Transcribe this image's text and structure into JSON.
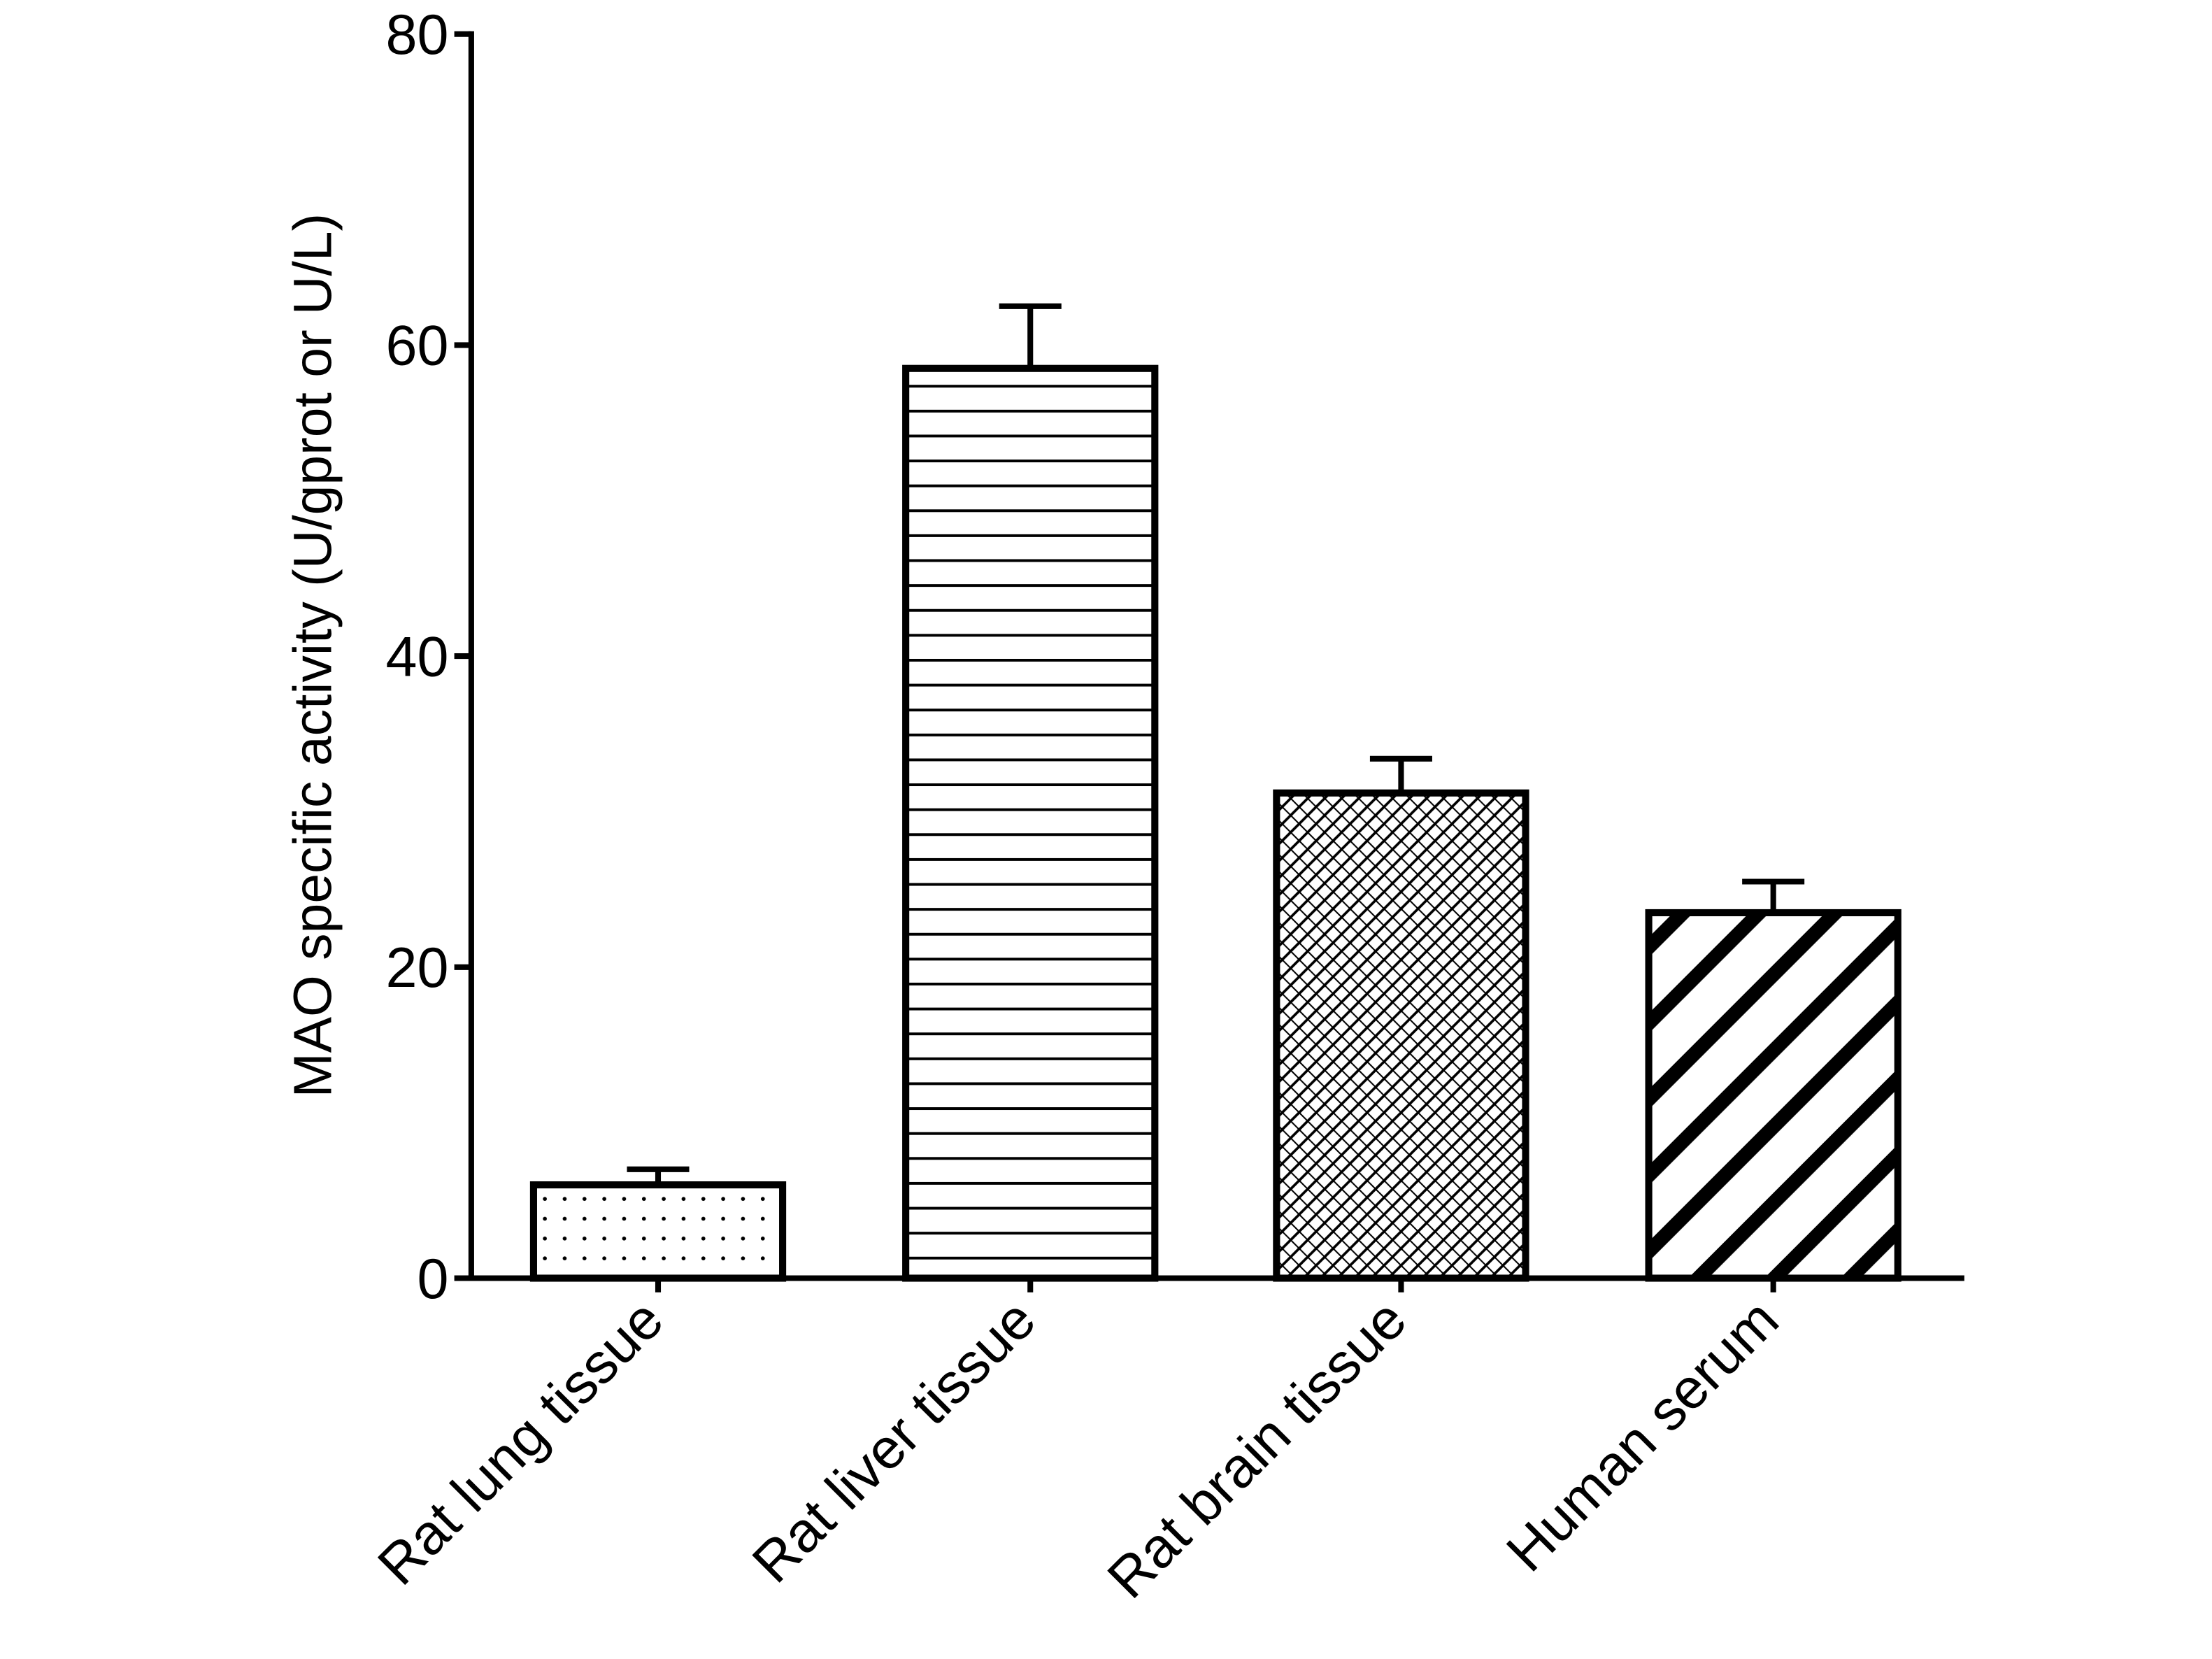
{
  "chart_data": {
    "type": "bar",
    "ylabel": "MAO specific activity (U/gprot or U/L)",
    "categories": [
      "Rat lung tissue",
      "Rat liver tissue",
      "Rat brain tissue",
      "Human serum"
    ],
    "values": [
      6.0,
      58.5,
      31.2,
      23.5
    ],
    "errors": [
      1.0,
      4.0,
      2.2,
      2.0
    ],
    "patterns": [
      "dots",
      "horizontal",
      "crosshatch",
      "diagonal"
    ],
    "color": "#000000",
    "ylim": [
      0,
      80
    ],
    "yticks": [
      0,
      20,
      40,
      60,
      80
    ],
    "grid": false
  }
}
